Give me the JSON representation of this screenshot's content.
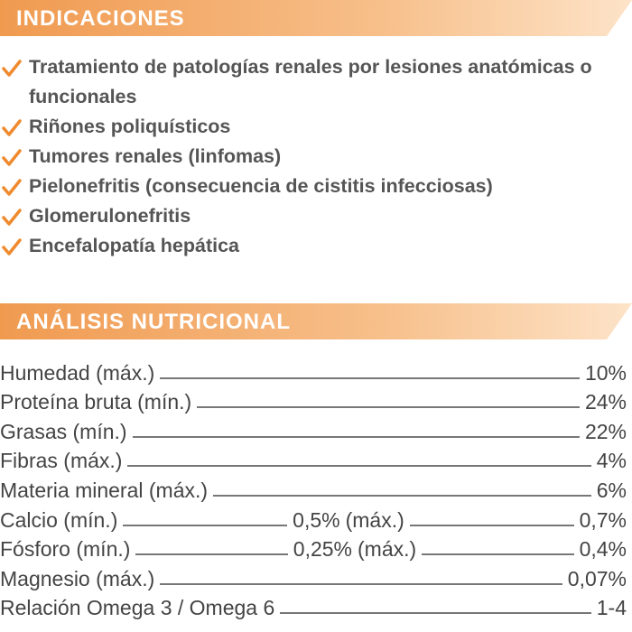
{
  "indicaciones": {
    "title": "INDICACIONES",
    "items": [
      "Tratamiento de patologías renales por lesiones anatómicas o funcionales",
      "Riñones poliquísticos",
      "Tumores renales (linfomas)",
      "Pielonefritis (consecuencia de cistitis infecciosas)",
      "Glomerulonefritis",
      "Encefalopatía hepática"
    ]
  },
  "analisis": {
    "title": "ANÁLISIS NUTRICIONAL",
    "rows": [
      {
        "label": "Humedad (máx.)",
        "value": "10%"
      },
      {
        "label": "Proteína bruta (mín.)",
        "value": "24%"
      },
      {
        "label": "Grasas (mín.)",
        "value": "22%"
      },
      {
        "label": "Fibras (máx.)",
        "value": "4%"
      },
      {
        "label": "Materia mineral (máx.)",
        "value": "6%"
      },
      {
        "label": "Calcio (mín.)",
        "value": "0,5%",
        "label2": "(máx.)",
        "value2": "0,7%"
      },
      {
        "label": "Fósforo (mín.)",
        "value": "0,25%",
        "label2": "(máx.)",
        "value2": "0,4%"
      },
      {
        "label": "Magnesio (máx.)",
        "value": "0,07%"
      },
      {
        "label": "Relación Omega 3 / Omega 6",
        "value": "1-4"
      }
    ]
  }
}
